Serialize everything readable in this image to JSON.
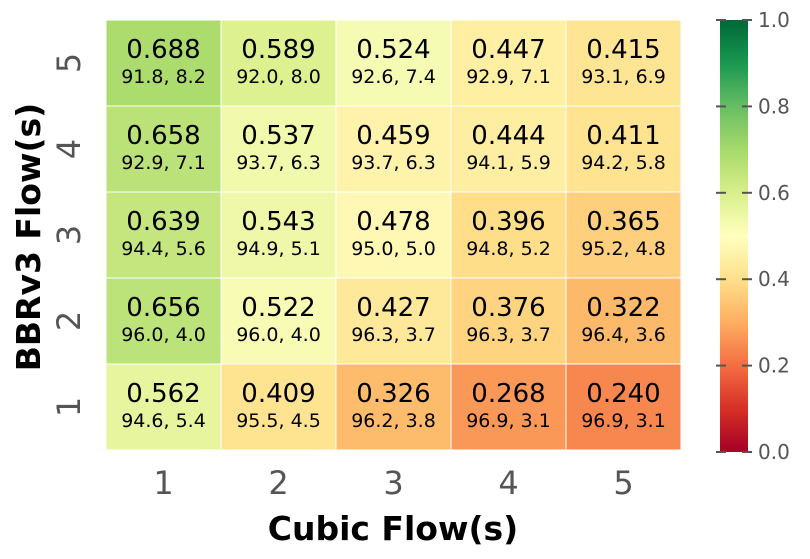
{
  "chart_data": {
    "type": "heatmap",
    "xlabel": "Cubic Flow(s)",
    "ylabel": "BBRv3 Flow(s)",
    "x_categories": [
      "1",
      "2",
      "3",
      "4",
      "5"
    ],
    "y_categories": [
      "1",
      "2",
      "3",
      "4",
      "5"
    ],
    "values": [
      [
        0.562,
        0.409,
        0.326,
        0.268,
        0.24
      ],
      [
        0.656,
        0.522,
        0.427,
        0.376,
        0.322
      ],
      [
        0.639,
        0.543,
        0.478,
        0.396,
        0.365
      ],
      [
        0.658,
        0.537,
        0.459,
        0.444,
        0.411
      ],
      [
        0.688,
        0.589,
        0.524,
        0.447,
        0.415
      ]
    ],
    "sublabels": [
      [
        "94.6, 5.4",
        "95.5, 4.5",
        "96.2, 3.8",
        "96.9, 3.1",
        "96.9, 3.1"
      ],
      [
        "96.0, 4.0",
        "96.0, 4.0",
        "96.3, 3.7",
        "96.3, 3.7",
        "96.4, 3.6"
      ],
      [
        "94.4, 5.6",
        "94.9, 5.1",
        "95.0, 5.0",
        "94.8, 5.2",
        "95.2, 4.8"
      ],
      [
        "92.9, 7.1",
        "93.7, 6.3",
        "93.7, 6.3",
        "94.1, 5.9",
        "94.2, 5.8"
      ],
      [
        "91.8, 8.2",
        "92.0, 8.0",
        "92.6, 7.4",
        "92.9, 7.1",
        "93.1, 6.9"
      ]
    ],
    "value_labels": [
      [
        "0.562",
        "0.409",
        "0.326",
        "0.268",
        "0.240"
      ],
      [
        "0.656",
        "0.522",
        "0.427",
        "0.376",
        "0.322"
      ],
      [
        "0.639",
        "0.543",
        "0.478",
        "0.396",
        "0.365"
      ],
      [
        "0.658",
        "0.537",
        "0.459",
        "0.444",
        "0.411"
      ],
      [
        "0.688",
        "0.589",
        "0.524",
        "0.447",
        "0.415"
      ]
    ],
    "colorbar": {
      "range": [
        0.0,
        1.0
      ],
      "ticks": [
        "0.0",
        "0.2",
        "0.4",
        "0.6",
        "0.8",
        "1.0"
      ],
      "colormap": "RdYlGn"
    }
  }
}
